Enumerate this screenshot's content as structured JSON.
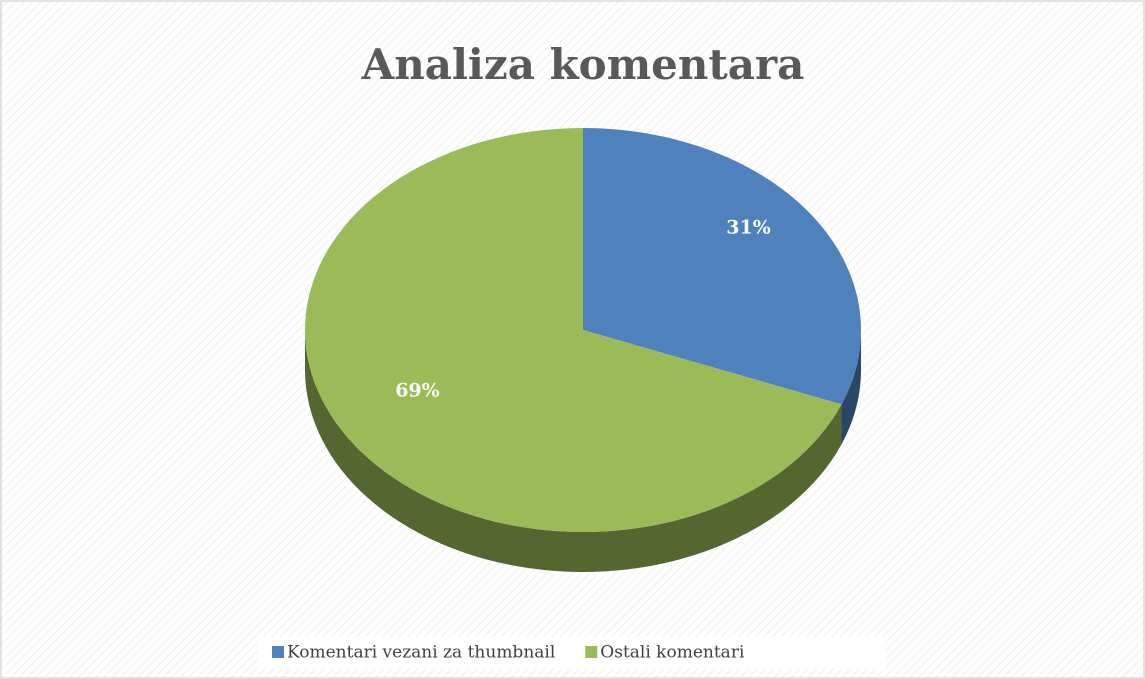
{
  "chart_data": {
    "type": "pie",
    "title": "Analiza komentara",
    "categories": [
      "Komentari vezani za thumbnail",
      "Ostali komentari"
    ],
    "values": [
      31,
      69
    ],
    "value_labels": [
      "31%",
      "69%"
    ],
    "colors": [
      "#4f81bd",
      "#9bbb59"
    ],
    "legend": "bottom"
  }
}
